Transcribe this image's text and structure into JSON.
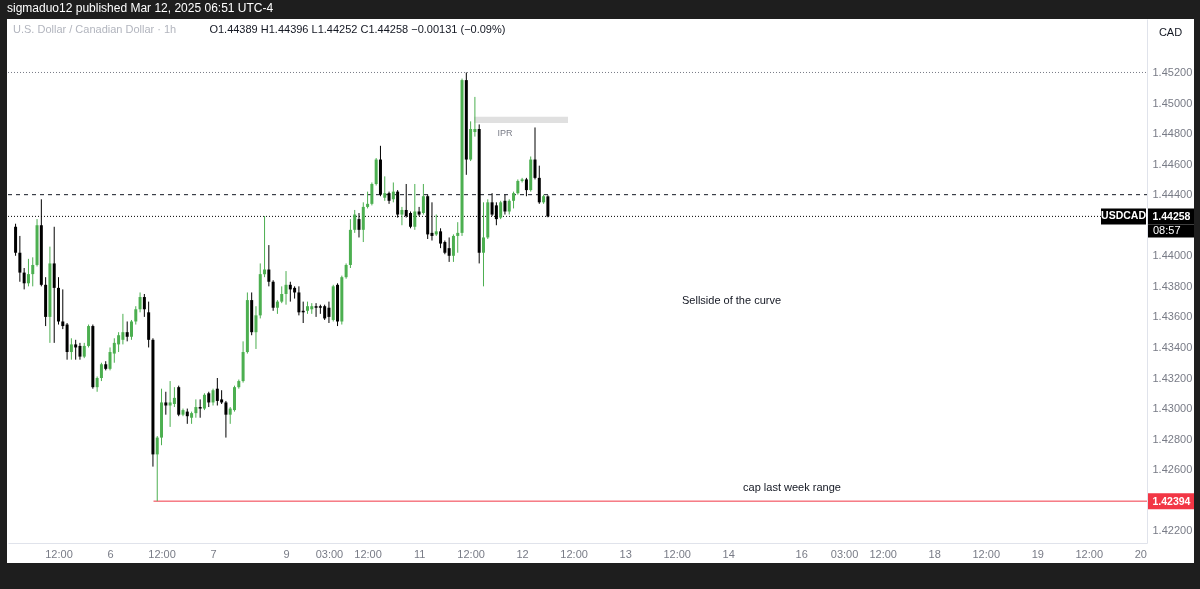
{
  "chart_data": {
    "type": "candlestick",
    "title": "sigmaduo12 published Mar 12, 2025 06:51 UTC-4",
    "subtitle": "U.S. Dollar / Canadian Dollar · 1h",
    "ylabel": "CAD",
    "categories": [
      null,
      null,
      null,
      null,
      null,
      null,
      null,
      null,
      null,
      null,
      "12:00",
      null,
      null,
      null,
      null,
      null,
      null,
      null,
      null,
      null,
      null,
      null,
      "6",
      null,
      null,
      null,
      null,
      null,
      null,
      null,
      null,
      null,
      null,
      null,
      "12:00",
      null,
      null,
      null,
      null,
      null,
      null,
      null,
      null,
      null,
      null,
      null,
      "7",
      null,
      null,
      null,
      null,
      null,
      null,
      null,
      null,
      null,
      null,
      null,
      null,
      null,
      null,
      null,
      null,
      "9",
      null,
      null,
      null,
      null,
      null,
      null,
      null,
      null,
      null,
      "03:00",
      null,
      null,
      null,
      null,
      null,
      null,
      null,
      null,
      "12:00",
      null,
      null,
      null,
      null,
      null,
      null,
      null,
      null,
      null,
      null,
      null,
      "11",
      null,
      null,
      null,
      null,
      null,
      null,
      null,
      null,
      null,
      null,
      null,
      "12:00",
      null,
      null,
      null,
      null,
      null,
      null,
      null,
      null,
      null,
      null,
      null,
      "12",
      null,
      null,
      null,
      null,
      null,
      null,
      null,
      null,
      null,
      null,
      null,
      "12:00",
      null,
      null,
      null,
      null,
      null,
      null,
      null,
      null,
      null,
      null,
      null,
      "13",
      null,
      null,
      null,
      null,
      null,
      null,
      null,
      null,
      null,
      null,
      null,
      "12:00",
      null,
      null,
      null,
      null,
      null,
      null,
      null,
      null,
      null,
      null,
      null,
      "14",
      null,
      null,
      null,
      null,
      null,
      null,
      null,
      null,
      null,
      null,
      null,
      null,
      null,
      null,
      null,
      null,
      "16",
      null,
      null,
      null,
      null,
      null,
      null,
      null,
      null,
      null,
      "03:00",
      null,
      null,
      null,
      null,
      null,
      null,
      null,
      null,
      "12:00",
      null,
      null,
      null,
      null,
      null,
      null,
      null,
      null,
      null,
      null,
      null,
      "18",
      null,
      null,
      null,
      null,
      null,
      null,
      null,
      null,
      null,
      null,
      null,
      "12:00",
      null,
      null,
      null,
      null,
      null,
      null,
      null,
      null,
      null,
      null,
      null,
      "19",
      null,
      null,
      null,
      null,
      null,
      null,
      null,
      null,
      null,
      null,
      null,
      "12:00",
      null,
      null,
      null,
      null,
      null,
      null,
      null,
      null,
      null,
      null,
      null,
      "20"
    ],
    "ohlc": [
      [
        1.4419,
        1.4421,
        1.44,
        1.4402
      ],
      [
        1.4402,
        1.4413,
        1.4383,
        1.4389
      ],
      [
        1.4389,
        1.4392,
        1.4378,
        1.4382
      ],
      [
        1.4382,
        1.4398,
        1.438,
        1.4388
      ],
      [
        1.4388,
        1.4399,
        1.438,
        1.4394
      ],
      [
        1.4394,
        1.4424,
        1.4393,
        1.442
      ],
      [
        1.442,
        1.4437,
        1.438,
        1.4381
      ],
      [
        1.4381,
        1.4386,
        1.4354,
        1.436
      ],
      [
        1.436,
        1.4406,
        1.4343,
        1.4395
      ],
      [
        1.4395,
        1.4419,
        1.4343,
        1.4379
      ],
      [
        1.4379,
        1.4386,
        1.4355,
        1.4357
      ],
      [
        1.4357,
        1.4378,
        1.4352,
        1.4354
      ],
      [
        1.4355,
        1.4356,
        1.4332,
        1.4337
      ],
      [
        1.4337,
        1.4346,
        1.4332,
        1.4342
      ],
      [
        1.4342,
        1.4345,
        1.4332,
        1.434
      ],
      [
        1.4341,
        1.4343,
        1.4332,
        1.4334
      ],
      [
        1.4334,
        1.4343,
        1.4333,
        1.4341
      ],
      [
        1.4341,
        1.4355,
        1.434,
        1.4354
      ],
      [
        1.4354,
        1.4355,
        1.4313,
        1.4314
      ],
      [
        1.4314,
        1.4321,
        1.4311,
        1.432
      ],
      [
        1.432,
        1.433,
        1.4318,
        1.4329
      ],
      [
        1.4329,
        1.4331,
        1.4325,
        1.4326
      ],
      [
        1.4326,
        1.434,
        1.4325,
        1.4337
      ],
      [
        1.4336,
        1.4346,
        1.433,
        1.4343
      ],
      [
        1.4342,
        1.435,
        1.4337,
        1.4348
      ],
      [
        1.4345,
        1.4362,
        1.4342,
        1.435
      ],
      [
        1.435,
        1.4357,
        1.4344,
        1.4347
      ],
      [
        1.4347,
        1.4358,
        1.4345,
        1.4357
      ],
      [
        1.4357,
        1.4367,
        1.4355,
        1.4365
      ],
      [
        1.4365,
        1.4376,
        1.4363,
        1.4373
      ],
      [
        1.4373,
        1.4375,
        1.436,
        1.4365
      ],
      [
        1.4363,
        1.437,
        1.434,
        1.4345
      ],
      [
        1.4345,
        1.4346,
        1.4262,
        1.427
      ],
      [
        1.427,
        1.4282,
        1.42394,
        1.4281
      ],
      [
        1.4281,
        1.4313,
        1.4276,
        1.4304
      ],
      [
        1.4304,
        1.4311,
        1.4296,
        1.4302
      ],
      [
        1.4302,
        1.4318,
        1.4288,
        1.4304
      ],
      [
        1.4303,
        1.4314,
        1.4301,
        1.4307
      ],
      [
        1.4314,
        1.4315,
        1.4295,
        1.4296
      ],
      [
        1.4296,
        1.43,
        1.4295,
        1.4299
      ],
      [
        1.4298,
        1.43,
        1.429,
        1.4295
      ],
      [
        1.4294,
        1.4298,
        1.429,
        1.4297
      ],
      [
        1.4297,
        1.4306,
        1.4294,
        1.4301
      ],
      [
        1.4301,
        1.4306,
        1.4294,
        1.43
      ],
      [
        1.43,
        1.431,
        1.4299,
        1.4309
      ],
      [
        1.431,
        1.4311,
        1.4301,
        1.4304
      ],
      [
        1.4304,
        1.4313,
        1.4302,
        1.4312
      ],
      [
        1.4313,
        1.432,
        1.4302,
        1.4305
      ],
      [
        1.4306,
        1.4312,
        1.4303,
        1.4304
      ],
      [
        1.4304,
        1.4305,
        1.4281,
        1.4296
      ],
      [
        1.4296,
        1.4301,
        1.429,
        1.43
      ],
      [
        1.4299,
        1.4315,
        1.4298,
        1.4314
      ],
      [
        1.4314,
        1.4319,
        1.4313,
        1.4318
      ],
      [
        1.4318,
        1.4344,
        1.4317,
        1.4337
      ],
      [
        1.4337,
        1.4376,
        1.4336,
        1.4371
      ],
      [
        1.4371,
        1.4376,
        1.4348,
        1.435
      ],
      [
        1.435,
        1.4367,
        1.4339,
        1.4361
      ],
      [
        1.4361,
        1.4395,
        1.4359,
        1.4388
      ],
      [
        1.4388,
        1.4426,
        1.4386,
        1.4391
      ],
      [
        1.4391,
        1.4407,
        1.438,
        1.4383
      ],
      [
        1.4383,
        1.4384,
        1.4364,
        1.4366
      ],
      [
        1.4366,
        1.4371,
        1.4362,
        1.437
      ],
      [
        1.437,
        1.438,
        1.4369,
        1.4375
      ],
      [
        1.4375,
        1.439,
        1.4368,
        1.4381
      ],
      [
        1.4381,
        1.4383,
        1.437,
        1.4378
      ],
      [
        1.4379,
        1.438,
        1.4372,
        1.4376
      ],
      [
        1.4376,
        1.438,
        1.4361,
        1.4363
      ],
      [
        1.4364,
        1.437,
        1.4356,
        1.4363
      ],
      [
        1.4364,
        1.437,
        1.4362,
        1.4367
      ],
      [
        1.4365,
        1.4369,
        1.4362,
        1.4367
      ],
      [
        1.4367,
        1.4369,
        1.436,
        1.4366
      ],
      [
        1.4367,
        1.4368,
        1.4362,
        1.4366
      ],
      [
        1.4367,
        1.4368,
        1.4358,
        1.4359
      ],
      [
        1.4366,
        1.437,
        1.4356,
        1.436
      ],
      [
        1.4358,
        1.4381,
        1.4357,
        1.438
      ],
      [
        1.4381,
        1.4382,
        1.4354,
        1.4357
      ],
      [
        1.4357,
        1.4387,
        1.4355,
        1.4386
      ],
      [
        1.4386,
        1.4395,
        1.4385,
        1.4394
      ],
      [
        1.4394,
        1.4424,
        1.4392,
        1.4417
      ],
      [
        1.4417,
        1.443,
        1.4415,
        1.4427
      ],
      [
        1.4424,
        1.4428,
        1.4412,
        1.4417
      ],
      [
        1.4417,
        1.4435,
        1.4409,
        1.4432
      ],
      [
        1.4432,
        1.4442,
        1.4431,
        1.4434
      ],
      [
        1.4434,
        1.4448,
        1.4433,
        1.4447
      ],
      [
        1.4447,
        1.4464,
        1.4446,
        1.4463
      ],
      [
        1.4463,
        1.4472,
        1.4439,
        1.444
      ],
      [
        1.4438,
        1.4452,
        1.4436,
        1.4441
      ],
      [
        1.4441,
        1.4442,
        1.4434,
        1.4436
      ],
      [
        1.4437,
        1.4448,
        1.4435,
        1.4442
      ],
      [
        1.4442,
        1.4443,
        1.4425,
        1.4427
      ],
      [
        1.4427,
        1.4432,
        1.442,
        1.443
      ],
      [
        1.443,
        1.4447,
        1.4425,
        1.4426
      ],
      [
        1.4428,
        1.4429,
        1.4418,
        1.4419
      ],
      [
        1.4419,
        1.4447,
        1.4417,
        1.4429
      ],
      [
        1.4429,
        1.4432,
        1.4426,
        1.4427
      ],
      [
        1.4428,
        1.4447,
        1.4427,
        1.4439
      ],
      [
        1.4439,
        1.444,
        1.4411,
        1.4414
      ],
      [
        1.4415,
        1.4435,
        1.441,
        1.4413
      ],
      [
        1.4414,
        1.4427,
        1.4413,
        1.4416
      ],
      [
        1.4416,
        1.4418,
        1.4405,
        1.4408
      ],
      [
        1.4409,
        1.441,
        1.4401,
        1.4402
      ],
      [
        1.4405,
        1.4412,
        1.4396,
        1.44
      ],
      [
        1.44,
        1.4414,
        1.4396,
        1.4413
      ],
      [
        1.4413,
        1.4422,
        1.4402,
        1.4415
      ],
      [
        1.4415,
        1.4516,
        1.4413,
        1.4515
      ],
      [
        1.4515,
        1.452,
        1.4453,
        1.4463
      ],
      [
        1.4463,
        1.4488,
        1.4462,
        1.4483
      ],
      [
        1.4481,
        1.4504,
        1.4478,
        1.4483
      ],
      [
        1.4483,
        1.4486,
        1.4395,
        1.4402
      ],
      [
        1.4402,
        1.4435,
        1.438,
        1.4412
      ],
      [
        1.4412,
        1.4437,
        1.4411,
        1.4435
      ],
      [
        1.4435,
        1.4441,
        1.4426,
        1.4427
      ],
      [
        1.4433,
        1.4435,
        1.442,
        1.4424
      ],
      [
        1.4425,
        1.4436,
        1.4424,
        1.4435
      ],
      [
        1.4436,
        1.444,
        1.4427,
        1.4429
      ],
      [
        1.4429,
        1.4437,
        1.4427,
        1.4436
      ],
      [
        1.4436,
        1.4442,
        1.4431,
        1.4441
      ],
      [
        1.4441,
        1.445,
        1.444,
        1.4449
      ],
      [
        1.4449,
        1.4451,
        1.4448,
        1.445
      ],
      [
        1.445,
        1.4451,
        1.4439,
        1.4443
      ],
      [
        1.4443,
        1.4465,
        1.4442,
        1.4463
      ],
      [
        1.4463,
        1.4484,
        1.445,
        1.4451
      ],
      [
        1.4451,
        1.4459,
        1.4434,
        1.4435
      ],
      [
        1.4435,
        1.444,
        1.4434,
        1.4439
      ],
      [
        1.44389,
        1.44396,
        1.44252,
        1.44258
      ],
      null,
      null,
      null,
      null,
      null,
      null,
      null,
      null,
      null,
      null,
      null,
      null,
      null,
      null,
      null,
      null,
      null,
      null,
      null,
      null,
      null,
      null,
      null,
      null,
      null,
      null,
      null,
      null,
      null,
      null,
      null,
      null,
      null,
      null,
      null,
      null,
      null,
      null,
      null,
      null,
      null,
      null,
      null,
      null,
      null,
      null,
      null,
      null,
      null,
      null,
      null,
      null,
      null,
      null,
      null,
      null,
      null,
      null,
      null,
      null,
      null,
      null,
      null,
      null,
      null,
      null,
      null,
      null,
      null,
      null,
      null,
      null,
      null,
      null,
      null,
      null,
      null,
      null,
      null,
      null,
      null,
      null,
      null,
      null,
      null,
      null,
      null,
      null,
      null,
      null,
      null,
      null,
      null,
      null,
      null,
      null,
      null,
      null,
      null,
      null,
      null,
      null,
      null,
      null,
      null,
      null,
      null,
      null,
      null,
      null,
      null,
      null,
      null,
      null,
      null,
      null,
      null,
      null,
      null,
      null,
      null,
      null,
      null,
      null,
      null,
      null,
      null,
      null,
      null,
      null,
      null,
      null,
      null,
      null,
      null,
      null,
      null,
      null
    ],
    "colors": [
      "#000000",
      "#000000",
      "#000000",
      "#4caf50",
      "#4caf50",
      "#4caf50",
      "#000000",
      "#000000",
      "#4caf50",
      "#000000",
      "#000000",
      "#000000",
      "#000000",
      "#4caf50",
      "#000000",
      "#000000",
      "#4caf50",
      "#4caf50",
      "#000000",
      "#4caf50",
      "#4caf50",
      "#000000",
      "#4caf50",
      "#4caf50",
      "#4caf50",
      "#4caf50",
      "#000000",
      "#4caf50",
      "#4caf50",
      "#4caf50",
      "#000000",
      "#000000",
      "#000000",
      "#4caf50",
      "#4caf50",
      "#000000",
      "#4caf50",
      "#4caf50",
      "#000000",
      "#4caf50",
      "#000000",
      "#4caf50",
      "#4caf50",
      "#000000",
      "#4caf50",
      "#000000",
      "#4caf50",
      "#000000",
      "#000000",
      "#000000",
      "#4caf50",
      "#4caf50",
      "#4caf50",
      "#4caf50",
      "#4caf50",
      "#000000",
      "#4caf50",
      "#4caf50",
      "#4caf50",
      "#000000",
      "#000000",
      "#4caf50",
      "#4caf50",
      "#4caf50",
      "#000000",
      "#000000",
      "#000000",
      "#000000",
      "#4caf50",
      "#4caf50",
      "#000000",
      "#000000",
      "#000000",
      "#000000",
      "#4caf50",
      "#000000",
      "#4caf50",
      "#4caf50",
      "#4caf50",
      "#4caf50",
      "#000000",
      "#4caf50",
      "#4caf50",
      "#4caf50",
      "#4caf50",
      "#000000",
      "#4caf50",
      "#000000",
      "#4caf50",
      "#000000",
      "#4caf50",
      "#000000",
      "#000000",
      "#4caf50",
      "#000000",
      "#4caf50",
      "#000000",
      "#000000",
      "#4caf50",
      "#000000",
      "#000000",
      "#000000",
      "#4caf50",
      "#4caf50",
      "#4caf50",
      "#000000",
      "#4caf50",
      "#4caf50",
      "#000000",
      "#4caf50",
      "#4caf50",
      "#000000",
      "#000000",
      "#4caf50",
      "#000000",
      "#4caf50",
      "#4caf50",
      "#4caf50",
      "#4caf50",
      "#000000",
      "#4caf50",
      "#000000",
      "#000000",
      "#4caf50",
      "#000000",
      null,
      null,
      null,
      null,
      null,
      null,
      null,
      null,
      null,
      null,
      null,
      null,
      null,
      null,
      null,
      null,
      null,
      null,
      null,
      null,
      null,
      null,
      null,
      null,
      null,
      null,
      null,
      null,
      null,
      null,
      null,
      null,
      null,
      null,
      null,
      null,
      null,
      null,
      null,
      null,
      null,
      null,
      null,
      null,
      null,
      null,
      null,
      null,
      null,
      null,
      null,
      null,
      null,
      null,
      null,
      null,
      null,
      null,
      null,
      null,
      null,
      null,
      null,
      null,
      null,
      null,
      null,
      null,
      null,
      null,
      null,
      null,
      null,
      null,
      null,
      null,
      null,
      null,
      null,
      null,
      null,
      null,
      null,
      null,
      null,
      null,
      null,
      null,
      null,
      null,
      null,
      null,
      null,
      null,
      null,
      null,
      null,
      null,
      null,
      null,
      null,
      null,
      null,
      null,
      null,
      null,
      null,
      null,
      null,
      null,
      null,
      null,
      null,
      null,
      null,
      null,
      null,
      null,
      null,
      null,
      null,
      null,
      null,
      null,
      null,
      null,
      null,
      null,
      null,
      null,
      null,
      null,
      null,
      null,
      null,
      null,
      null,
      null
    ],
    "ylim": [
      1.4212,
      1.4555
    ],
    "yticks": [
      {
        "value": 1.422,
        "label": "1.42200"
      },
      {
        "value": 1.42394,
        "label": "1.42394"
      },
      {
        "value": 1.426,
        "label": "1.42600"
      },
      {
        "value": 1.428,
        "label": "1.42800"
      },
      {
        "value": 1.43,
        "label": "1.43000"
      },
      {
        "value": 1.432,
        "label": "1.43200"
      },
      {
        "value": 1.434,
        "label": "1.43400"
      },
      {
        "value": 1.436,
        "label": "1.43600"
      },
      {
        "value": 1.438,
        "label": "1.43800"
      },
      {
        "value": 1.44,
        "label": "1.44000"
      },
      {
        "value": 1.44258,
        "label": "1.44258"
      },
      {
        "value": 1.444,
        "label": "1.44400"
      },
      {
        "value": 1.446,
        "label": "1.44600"
      },
      {
        "value": 1.448,
        "label": "1.44800"
      },
      {
        "value": 1.45,
        "label": "1.45000"
      },
      {
        "value": 1.452,
        "label": "1.45200"
      }
    ],
    "grid": false,
    "ref_lines": [
      {
        "axis": "y",
        "value": 1.452,
        "color": "#787b86",
        "line_style": "dotted"
      },
      {
        "axis": "y",
        "value": 1.444,
        "color": "#131722",
        "line_style": "dashed"
      },
      {
        "axis": "y",
        "value": 1.44258,
        "label": "USDCAD",
        "color": "#000000",
        "line_style": "dotted"
      },
      {
        "axis": "y",
        "value": 1.42394,
        "label": "cap last week range",
        "color": "#f23645",
        "line_style": "solid"
      }
    ],
    "bands": [
      {
        "axis": "y",
        "from": 1.4487,
        "to": 1.4491,
        "color": "#e0e0e0"
      }
    ],
    "annotations": [
      "O1.44389 H1.44396 L1.44252 C1.44258 −0.00131 (−0.09%)",
      "08:57",
      "IPR",
      "Sellside of the curve"
    ]
  }
}
